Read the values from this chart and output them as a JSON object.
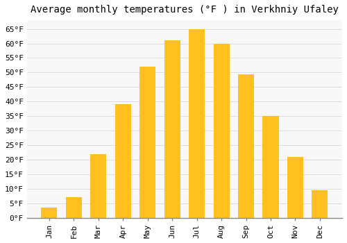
{
  "title": "Average monthly temperatures (°F ) in Verkhniy Ufaley",
  "months": [
    "Jan",
    "Feb",
    "Mar",
    "Apr",
    "May",
    "Jun",
    "Jul",
    "Aug",
    "Sep",
    "Oct",
    "Nov",
    "Dec"
  ],
  "values": [
    3.5,
    7,
    22,
    39,
    52,
    61,
    65,
    60,
    49.5,
    35,
    21,
    9.5
  ],
  "bar_color": "#FFC020",
  "bar_edge_color": "#FFC020",
  "background_color": "#FFFFFF",
  "plot_bg_color": "#F8F8F8",
  "grid_color": "#DDDDDD",
  "title_fontsize": 10,
  "tick_fontsize": 8,
  "ylim": [
    0,
    68
  ],
  "ytick_values": [
    0,
    5,
    10,
    15,
    20,
    25,
    30,
    35,
    40,
    45,
    50,
    55,
    60,
    65
  ]
}
